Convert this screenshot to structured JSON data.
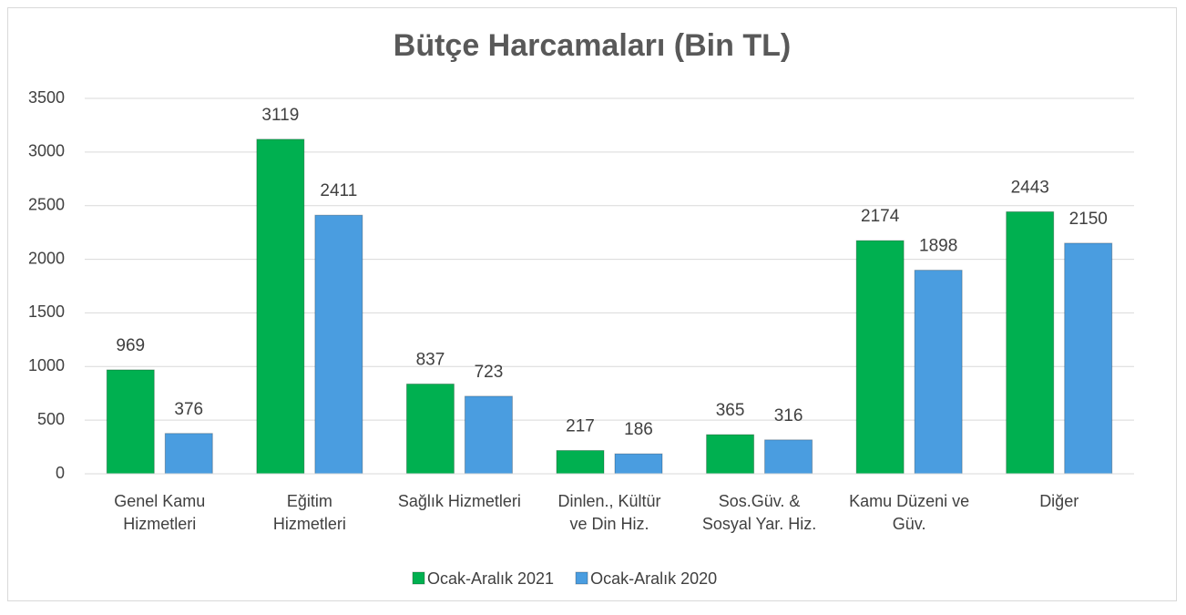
{
  "chart_data": {
    "type": "bar",
    "title": "Bütçe Harcamaları (Bin TL)",
    "categories": [
      "Genel Kamu\nHizmetleri",
      "Eğitim\nHizmetleri",
      "Sağlık Hizmetleri",
      "Dinlen., Kültür\nve Din Hiz.",
      "Sos.Güv. &\nSosyal Yar. Hiz.",
      "Kamu Düzeni ve\nGüv.",
      "Diğer"
    ],
    "series": [
      {
        "name": "Ocak-Aralık 2021",
        "color": "#00b050",
        "values": [
          969,
          3119,
          837,
          217,
          365,
          2174,
          2443
        ]
      },
      {
        "name": "Ocak-Aralık 2020",
        "color": "#4a9de0",
        "values": [
          376,
          2411,
          723,
          186,
          316,
          1898,
          2150
        ]
      }
    ],
    "ylim": [
      0,
      3500
    ],
    "yticks": [
      0,
      500,
      1000,
      1500,
      2000,
      2500,
      3000,
      3500
    ],
    "grid": true,
    "legend": "bottom"
  }
}
